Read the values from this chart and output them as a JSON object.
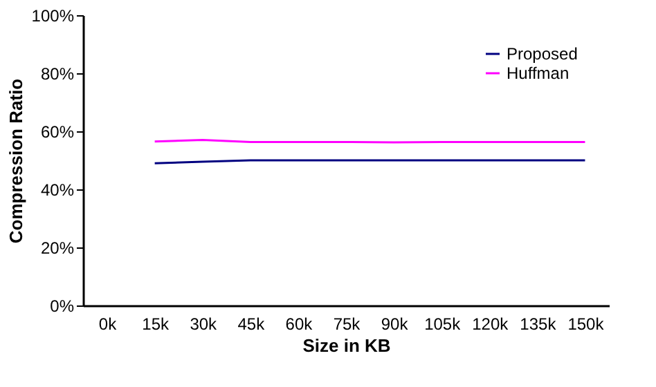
{
  "chart_data": {
    "type": "line",
    "xlabel": "Size in KB",
    "ylabel": "Compression Ratio",
    "categories": [
      "0k",
      "15k",
      "30k",
      "45k",
      "60k",
      "75k",
      "90k",
      "105k",
      "120k",
      "135k",
      "150k"
    ],
    "series": [
      {
        "name": "Proposed",
        "color": "#000080",
        "values": [
          null,
          49,
          49.5,
          50,
          50,
          50,
          50,
          50,
          50,
          50,
          50
        ]
      },
      {
        "name": "Huffman",
        "color": "#ff00ff",
        "values": [
          null,
          56.5,
          57,
          56.3,
          56.3,
          56.3,
          56.2,
          56.3,
          56.3,
          56.3,
          56.3
        ]
      }
    ],
    "ylim": [
      0,
      100
    ],
    "yticks": [
      {
        "value": 0,
        "label": "0%"
      },
      {
        "value": 20,
        "label": "20%"
      },
      {
        "value": 40,
        "label": "40%"
      },
      {
        "value": 60,
        "label": "60%"
      },
      {
        "value": 80,
        "label": "80%"
      },
      {
        "value": 100,
        "label": "100%"
      }
    ],
    "grid": false,
    "legend": "top right",
    "marker": "none",
    "line_style": "solid"
  }
}
